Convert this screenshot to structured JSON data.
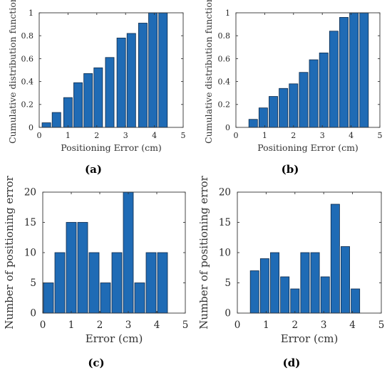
{
  "chart_data": [
    {
      "type": "bar",
      "panel_label": "(a)",
      "xlabel": "Positioning Error (cm)",
      "ylabel": "Cumulative distribution function",
      "xlim": [
        0,
        5
      ],
      "ylim": [
        0,
        1
      ],
      "xticks": [
        0,
        1,
        2,
        3,
        4,
        5
      ],
      "yticks": [
        0,
        0.2,
        0.4,
        0.6,
        0.8,
        1
      ],
      "ytick_labels": [
        "0",
        "0.2",
        "0.4",
        "0.6",
        "0.8",
        "1"
      ],
      "x": [
        0.25,
        0.6,
        1.0,
        1.35,
        1.7,
        2.05,
        2.45,
        2.85,
        3.2,
        3.6,
        3.95,
        4.3
      ],
      "values": [
        0.04,
        0.13,
        0.26,
        0.39,
        0.47,
        0.52,
        0.61,
        0.78,
        0.82,
        0.91,
        1.0,
        1.0
      ],
      "bar_width": 0.3
    },
    {
      "type": "bar",
      "panel_label": "(b)",
      "xlabel": "Positioning Error (cm)",
      "ylabel": "Cumulative distribution function",
      "xlim": [
        0,
        5
      ],
      "ylim": [
        0,
        1
      ],
      "xticks": [
        0,
        1,
        2,
        3,
        4,
        5
      ],
      "yticks": [
        0,
        0.2,
        0.4,
        0.6,
        0.8,
        1
      ],
      "ytick_labels": [
        "0",
        "0.2",
        "0.4",
        "0.6",
        "0.8",
        "1"
      ],
      "x": [
        0.6,
        0.95,
        1.3,
        1.65,
        2.0,
        2.35,
        2.7,
        3.05,
        3.4,
        3.75,
        4.1,
        4.45
      ],
      "values": [
        0.07,
        0.17,
        0.27,
        0.34,
        0.38,
        0.48,
        0.59,
        0.65,
        0.84,
        0.96,
        1.0,
        1.0
      ],
      "bar_width": 0.3
    },
    {
      "type": "bar",
      "panel_label": "(c)",
      "xlabel": "Error (cm)",
      "ylabel": "Number of positioning error",
      "xlim": [
        0,
        5
      ],
      "ylim": [
        0,
        20
      ],
      "xticks": [
        0,
        1,
        2,
        3,
        4,
        5
      ],
      "yticks": [
        0,
        5,
        10,
        15,
        20
      ],
      "ytick_labels": [
        "0",
        "5",
        "10",
        "15",
        "20"
      ],
      "x": [
        0.2,
        0.6,
        1.0,
        1.4,
        1.8,
        2.2,
        2.6,
        3.0,
        3.4,
        3.8,
        4.2
      ],
      "values": [
        5,
        10,
        15,
        15,
        10,
        5,
        10,
        20,
        5,
        10,
        10
      ],
      "bar_width": 0.35
    },
    {
      "type": "bar",
      "panel_label": "(d)",
      "xlabel": "Error (cm)",
      "ylabel": "Number of positioning error",
      "xlim": [
        0,
        5
      ],
      "ylim": [
        0,
        20
      ],
      "xticks": [
        0,
        1,
        2,
        3,
        4,
        5
      ],
      "yticks": [
        0,
        5,
        10,
        15,
        20
      ],
      "ytick_labels": [
        "0",
        "5",
        "10",
        "15",
        "20"
      ],
      "x": [
        0.6,
        0.95,
        1.3,
        1.65,
        2.0,
        2.35,
        2.7,
        3.05,
        3.4,
        3.75,
        4.1
      ],
      "values": [
        7,
        9,
        10,
        6,
        4,
        10,
        10,
        6,
        18,
        11,
        4
      ],
      "bar_width": 0.3
    }
  ]
}
